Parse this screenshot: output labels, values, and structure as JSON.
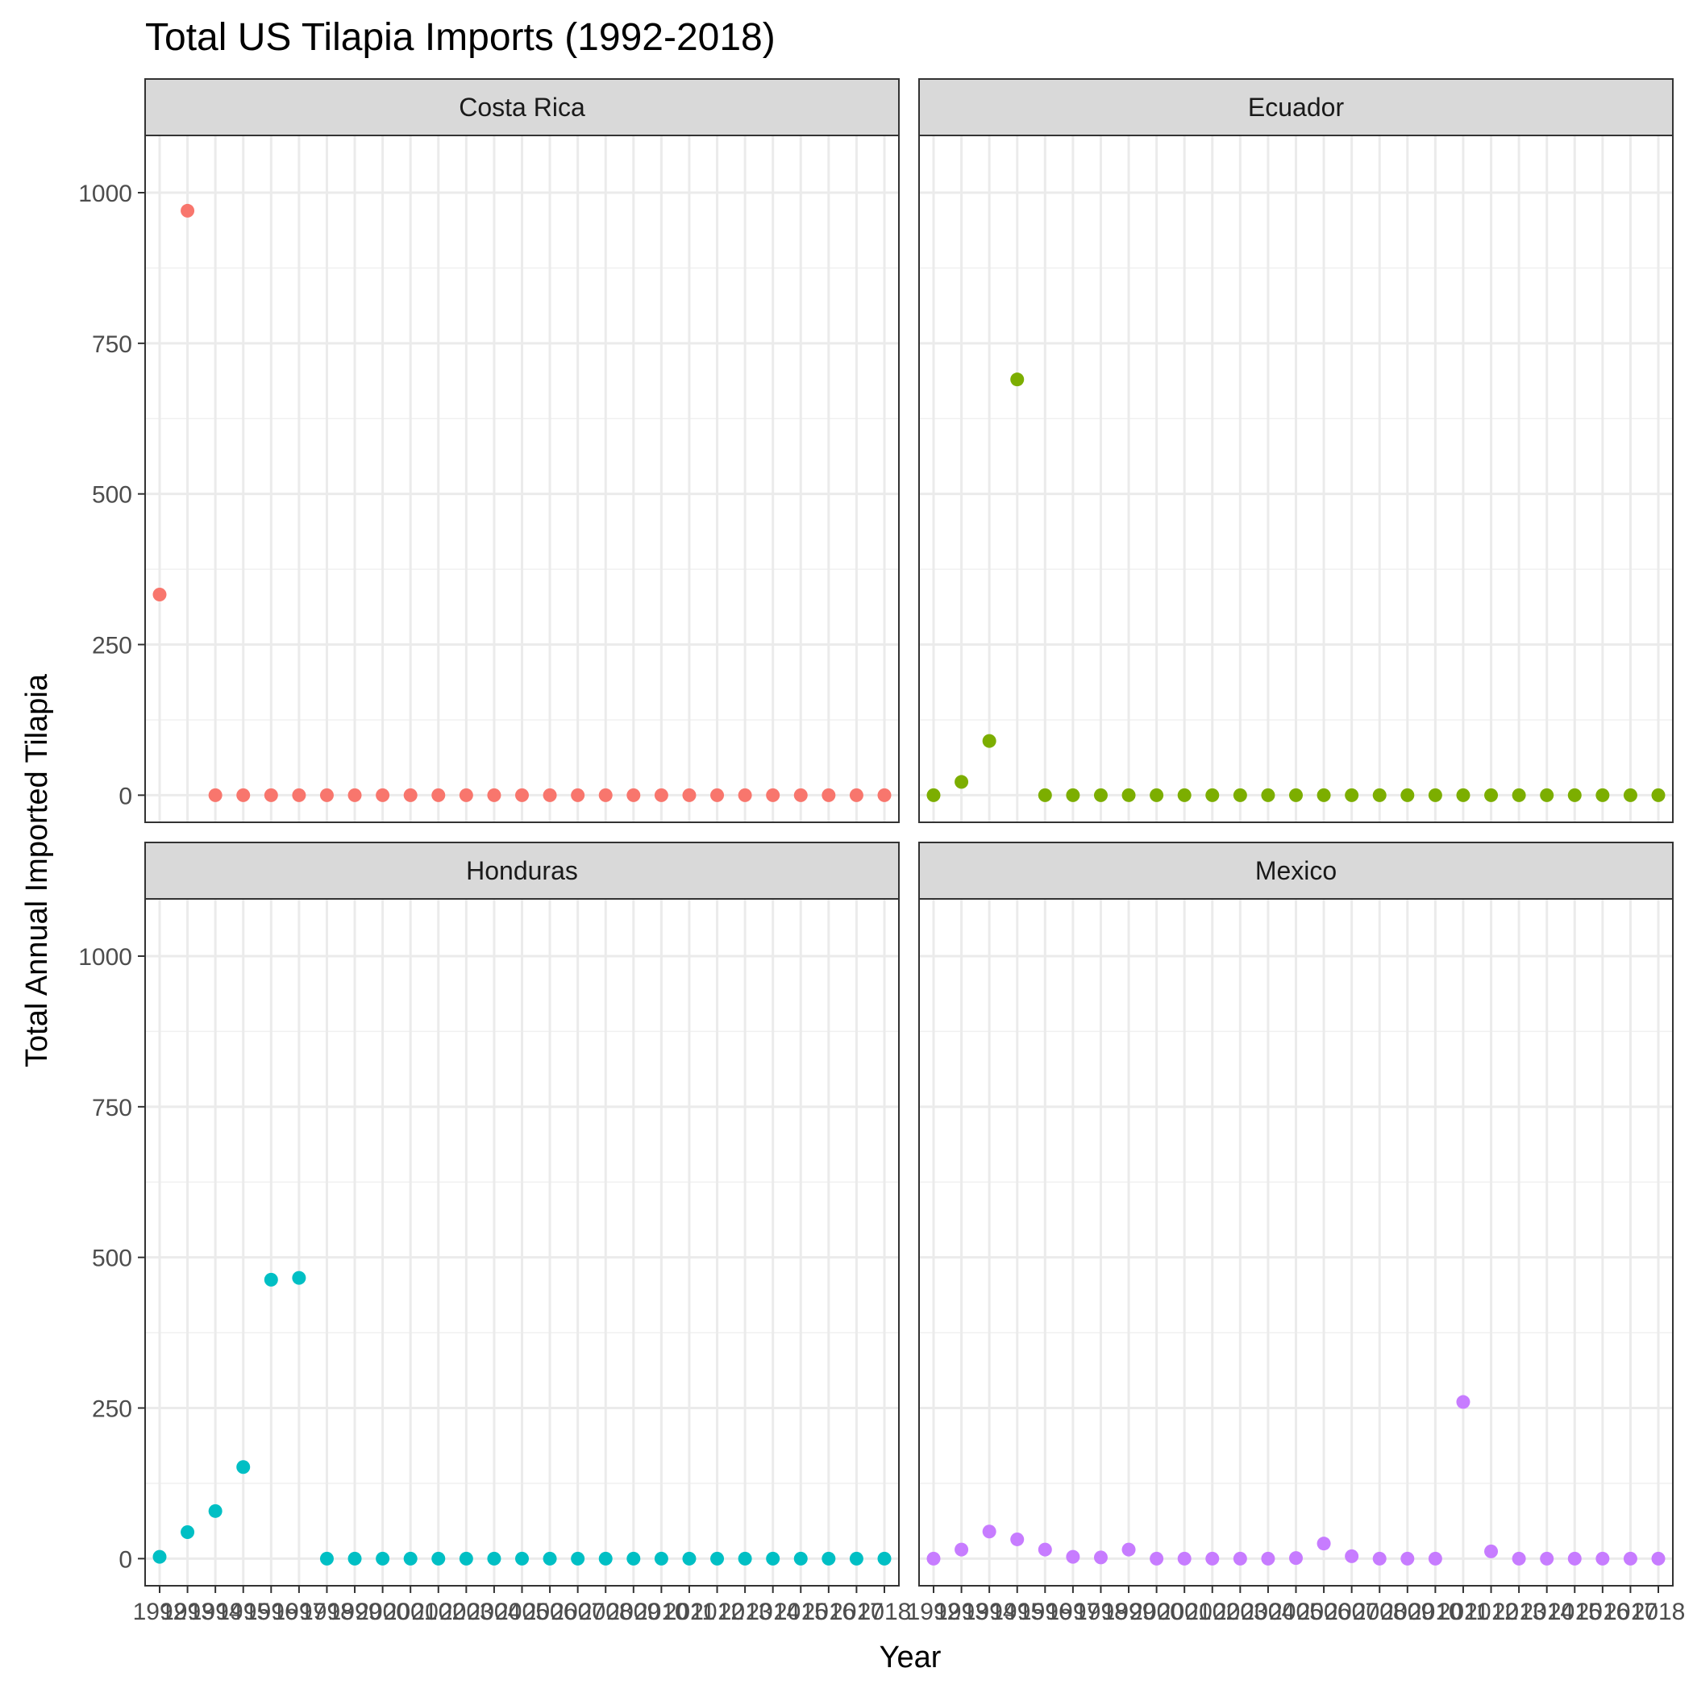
{
  "chart_data": {
    "type": "scatter",
    "title": "Total US Tilapia Imports (1992-2018)",
    "xlabel": "Year",
    "ylabel": "Total Annual Imported Tilapia",
    "x": [
      1992,
      1993,
      1994,
      1995,
      1996,
      1997,
      1998,
      1999,
      2000,
      2001,
      2002,
      2003,
      2004,
      2005,
      2006,
      2007,
      2008,
      2009,
      2010,
      2011,
      2012,
      2013,
      2014,
      2015,
      2016,
      2017,
      2018
    ],
    "ylim": [
      -45,
      1095
    ],
    "y_ticks": [
      0,
      250,
      500,
      750,
      1000
    ],
    "grid": true,
    "facet_layout": "2x2",
    "series": [
      {
        "name": "Costa Rica",
        "color": "#F8766D",
        "values": [
          333,
          970,
          0,
          0,
          0,
          0,
          0,
          0,
          0,
          0,
          0,
          0,
          0,
          0,
          0,
          0,
          0,
          0,
          0,
          0,
          0,
          0,
          0,
          0,
          0,
          0,
          0
        ]
      },
      {
        "name": "Ecuador",
        "color": "#7CAE00",
        "values": [
          0,
          22,
          90,
          690,
          0,
          0,
          0,
          0,
          0,
          0,
          0,
          0,
          0,
          0,
          0,
          0,
          0,
          0,
          0,
          0,
          0,
          0,
          0,
          0,
          0,
          0,
          0
        ]
      },
      {
        "name": "Honduras",
        "color": "#00BFC4",
        "values": [
          3,
          44,
          79,
          152,
          463,
          466,
          0,
          0,
          0,
          0,
          0,
          0,
          0,
          0,
          0,
          0,
          0,
          0,
          0,
          0,
          0,
          0,
          0,
          0,
          0,
          0,
          0
        ]
      },
      {
        "name": "Mexico",
        "color": "#C77CFF",
        "values": [
          0,
          15,
          45,
          32,
          15,
          3,
          2,
          15,
          0,
          0,
          0,
          0,
          0,
          1,
          25,
          4,
          0,
          0,
          0,
          260,
          12,
          0,
          0,
          0,
          0,
          0,
          0
        ]
      }
    ]
  }
}
